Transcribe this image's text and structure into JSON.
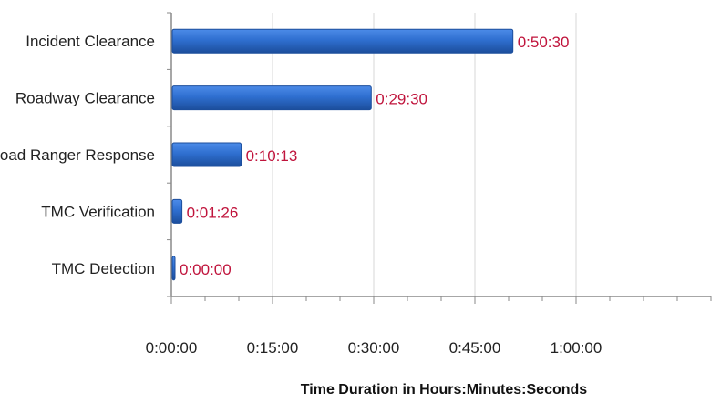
{
  "colors": {
    "bar_fill": "#2F6FD0",
    "bar_dark": "#1C4E9C",
    "label_color": "#C0143C",
    "gridline": "#D7D7D7",
    "axis": "#8A8A8A"
  },
  "chart_data": {
    "type": "bar",
    "orientation": "horizontal",
    "title": "",
    "xlabel": "Time Duration  in Hours:Minutes:Seconds",
    "ylabel": "",
    "categories": [
      "Incident Clearance",
      "Roadway Clearance",
      "Road Ranger Response",
      "TMC Verification",
      "TMC Detection"
    ],
    "values": [
      3030,
      1770,
      613,
      86,
      0
    ],
    "value_units": "seconds",
    "data_labels": [
      "0:50:30",
      "0:29:30",
      "0:10:13",
      "0:01:26",
      "0:00:00"
    ],
    "xlim": [
      0,
      4800
    ],
    "x_ticks": [
      0,
      900,
      1800,
      2700,
      3600
    ],
    "x_tick_labels": [
      "0:00:00",
      "0:15:00",
      "0:30:00",
      "0:45:00",
      "1:00:00"
    ],
    "grid": true,
    "legend": "none"
  }
}
